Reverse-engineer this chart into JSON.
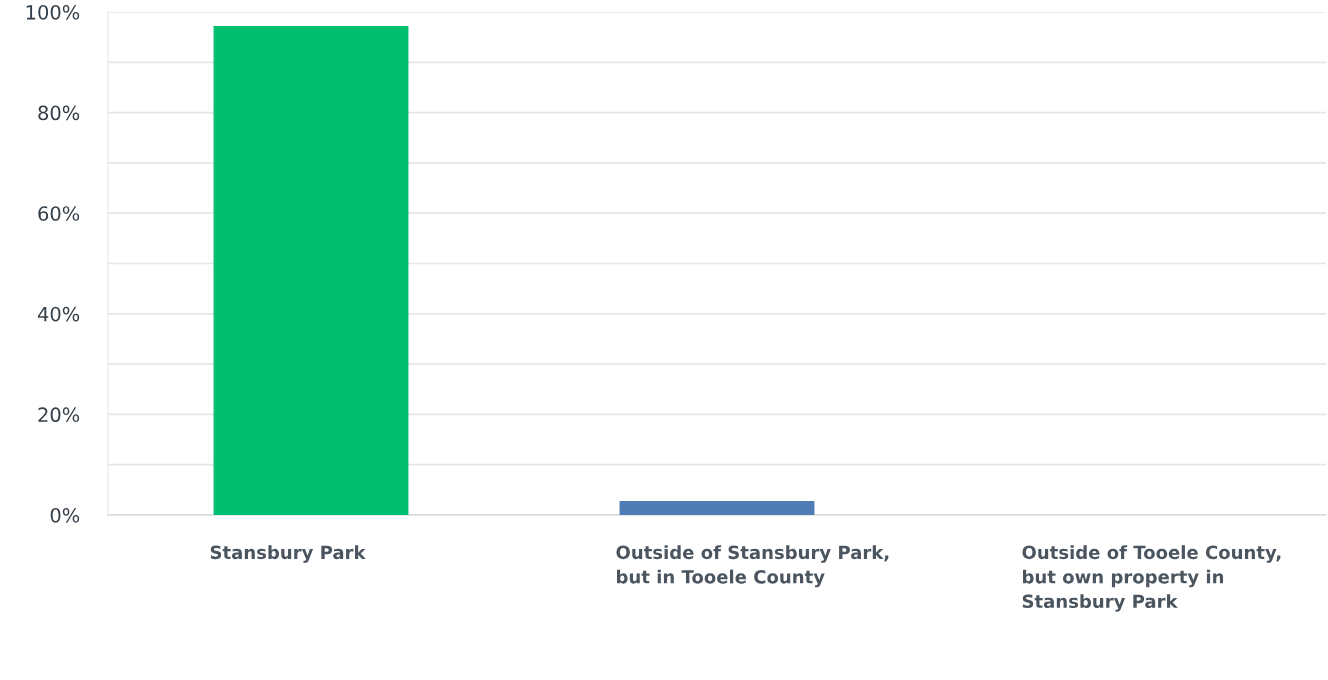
{
  "chart_data": {
    "type": "bar",
    "categories": [
      "Stansbury Park",
      "Outside of Stansbury Park, but in Tooele County",
      "Outside of Tooele County, but own property in Stansbury Park"
    ],
    "values": [
      97.2,
      2.8,
      0
    ],
    "colors": [
      "#00bf6f",
      "#507cb6",
      "#507cb6"
    ],
    "ylim": [
      0,
      100
    ],
    "yticks": [
      {
        "value": 0,
        "label": "0%"
      },
      {
        "value": 10,
        "label": null
      },
      {
        "value": 20,
        "label": "20%"
      },
      {
        "value": 30,
        "label": null
      },
      {
        "value": 40,
        "label": "40%"
      },
      {
        "value": 50,
        "label": null
      },
      {
        "value": 60,
        "label": "60%"
      },
      {
        "value": 70,
        "label": null
      },
      {
        "value": 80,
        "label": "80%"
      },
      {
        "value": 90,
        "label": null
      },
      {
        "value": 100,
        "label": "100%"
      }
    ],
    "grid": "y"
  }
}
